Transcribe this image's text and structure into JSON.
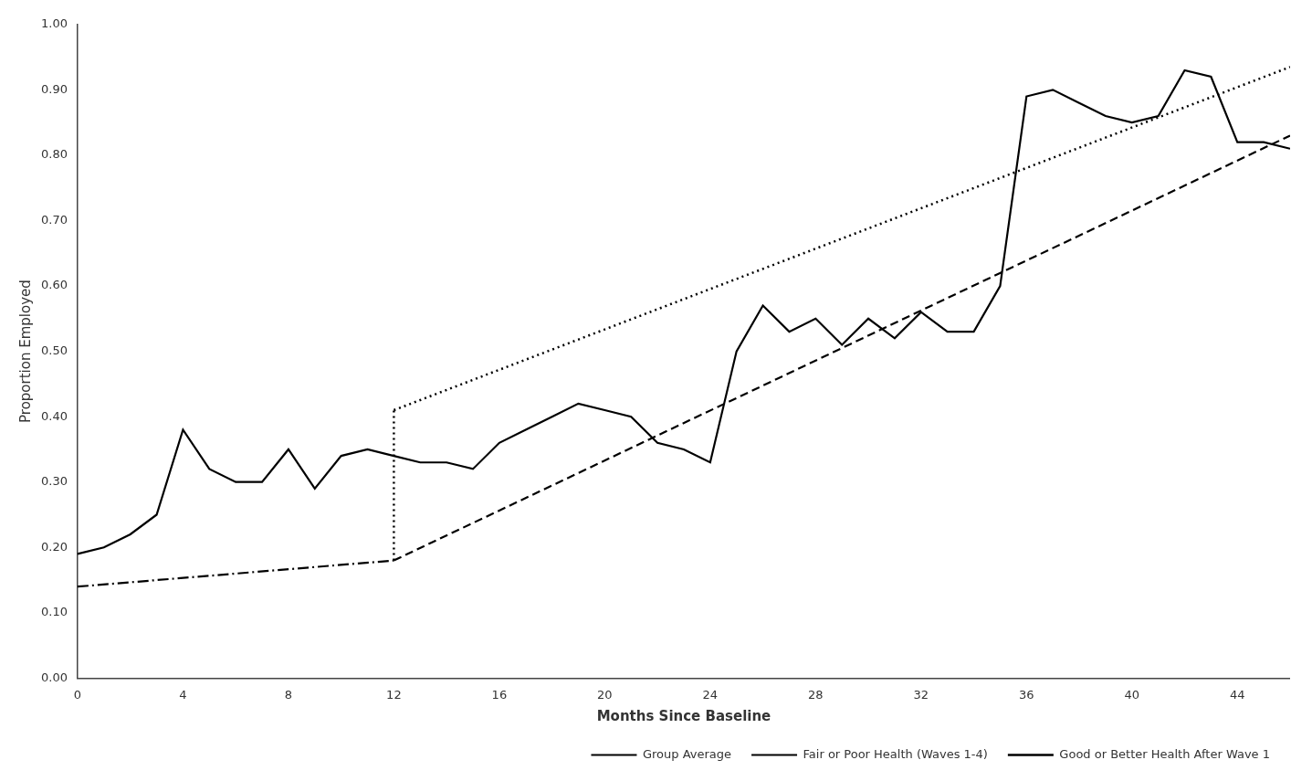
{
  "chart_data": {
    "type": "line",
    "xlabel": "Months Since Baseline",
    "ylabel": "Proportion Employed",
    "xlim": [
      0,
      46
    ],
    "ylim": [
      0.0,
      1.0
    ],
    "xticks": [
      0,
      4,
      8,
      12,
      16,
      20,
      24,
      28,
      32,
      36,
      40,
      44
    ],
    "yticks": [
      {
        "value": 0.0,
        "label": "0.00"
      },
      {
        "value": 0.1,
        "label": "0.10"
      },
      {
        "value": 0.2,
        "label": "0.20"
      },
      {
        "value": 0.3,
        "label": "0.30"
      },
      {
        "value": 0.4,
        "label": "0.40"
      },
      {
        "value": 0.5,
        "label": "0.50"
      },
      {
        "value": 0.6,
        "label": "0.60"
      },
      {
        "value": 0.7,
        "label": "0.70"
      },
      {
        "value": 0.8,
        "label": "0.80"
      },
      {
        "value": 0.9,
        "label": "0.90"
      },
      {
        "value": 1.0,
        "label": "1.00"
      }
    ],
    "grid": false,
    "legend": "lower right",
    "series": [
      {
        "name": "Group Average",
        "color": "#000000",
        "line_style": "solid",
        "x": [
          0,
          1,
          2,
          3,
          4,
          5,
          6,
          7,
          8,
          9,
          10,
          11,
          12,
          13,
          14,
          15,
          16,
          17,
          18,
          19,
          20,
          21,
          22,
          23,
          24,
          25,
          26,
          27,
          28,
          29,
          30,
          31,
          32,
          33,
          34,
          35,
          36,
          37,
          38,
          39,
          40,
          41,
          42,
          43,
          44,
          45,
          46
        ],
        "values": [
          0.19,
          0.2,
          0.22,
          0.25,
          0.38,
          0.32,
          0.3,
          0.3,
          0.35,
          0.29,
          0.34,
          0.35,
          0.34,
          0.33,
          0.33,
          0.32,
          0.36,
          0.38,
          0.4,
          0.42,
          0.41,
          0.4,
          0.36,
          0.35,
          0.33,
          0.5,
          0.57,
          0.53,
          0.55,
          0.51,
          0.55,
          0.52,
          0.56,
          0.53,
          0.53,
          0.6,
          0.89,
          0.9,
          0.88,
          0.86,
          0.85,
          0.86,
          0.93,
          0.92,
          0.82,
          0.82,
          0.81
        ]
      },
      {
        "color": "#000000",
        "line_style": "dashdot",
        "x": [
          0,
          12
        ],
        "values": [
          0.14,
          0.18
        ]
      },
      {
        "name": "Fair or Poor Health (Waves 1-4)",
        "color": "#000000",
        "line_style": "dashed",
        "x": [
          12,
          46
        ],
        "values": [
          0.18,
          0.83
        ]
      },
      {
        "color": "#000000",
        "line_style": "dotted",
        "x": [
          12,
          12
        ],
        "values": [
          0.18,
          0.41
        ]
      },
      {
        "name": "Good or Better Health After Wave 1",
        "color": "#000000",
        "line_style": "dotted",
        "x": [
          12,
          46
        ],
        "values": [
          0.41,
          0.935
        ]
      }
    ]
  }
}
